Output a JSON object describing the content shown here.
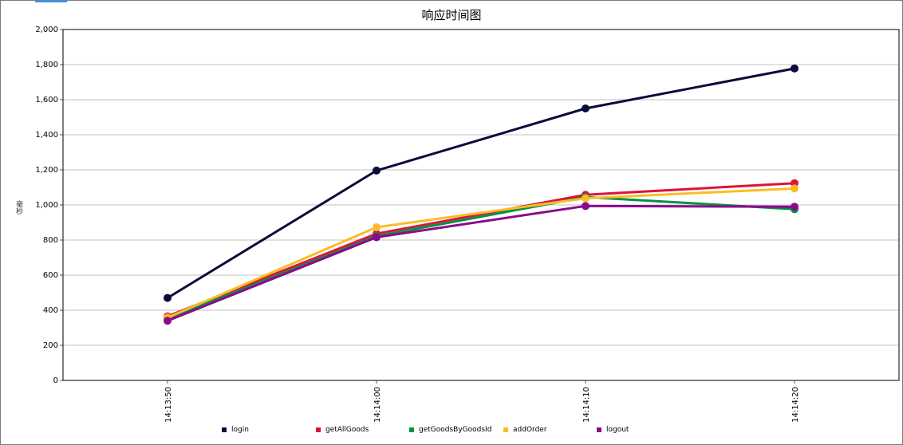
{
  "chart_data": {
    "type": "line",
    "title": "响应时间图",
    "ylabel": "毫秒",
    "xlabel": "",
    "categories": [
      "14:13:50",
      "14:14:00",
      "14:14:10",
      "14:14:20"
    ],
    "ylim": [
      0,
      2000
    ],
    "yticks": [
      0,
      200,
      400,
      600,
      800,
      1000,
      1200,
      1400,
      1600,
      1800,
      2000
    ],
    "ytick_labels": [
      "0",
      "200",
      "400",
      "600",
      "800",
      "1,000",
      "1,200",
      "1,400",
      "1,600",
      "1,800",
      "2,000"
    ],
    "grid": true,
    "legend_position": "bottom",
    "series": [
      {
        "name": "login",
        "color": "#0a0a3c",
        "values": [
          470,
          1196,
          1550,
          1778
        ]
      },
      {
        "name": "getAllGoods",
        "color": "#dc143c",
        "values": [
          365,
          836,
          1058,
          1124
        ]
      },
      {
        "name": "getGoodsByGoodsId",
        "color": "#009245",
        "values": [
          352,
          822,
          1045,
          976
        ]
      },
      {
        "name": "addOrder",
        "color": "#fbbc28",
        "values": [
          358,
          873,
          1038,
          1094
        ]
      },
      {
        "name": "logout",
        "color": "#8b0a8b",
        "values": [
          340,
          816,
          994,
          990
        ]
      }
    ]
  }
}
